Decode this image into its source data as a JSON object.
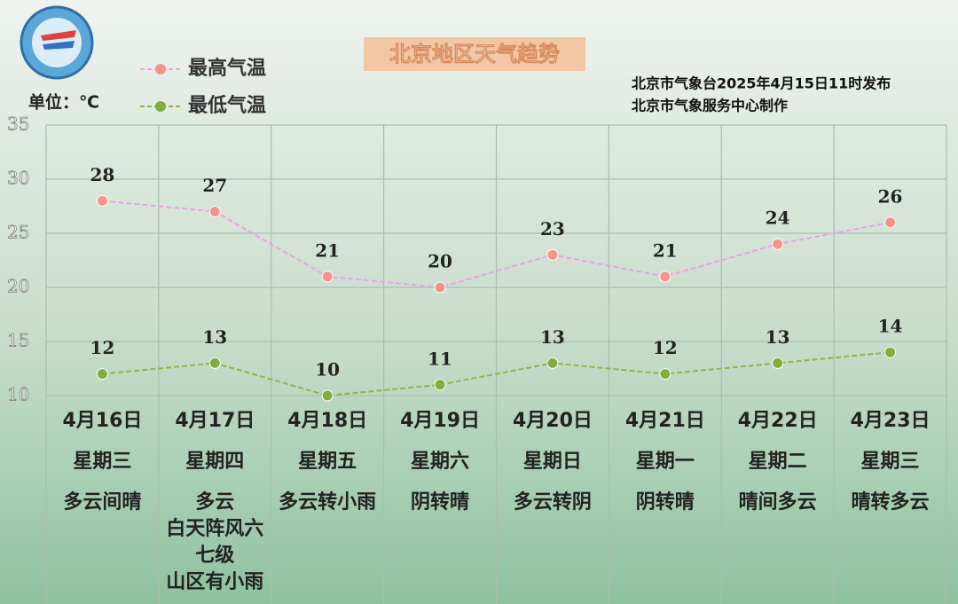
{
  "chart_data": {
    "type": "line",
    "title": "北京地区天气趋势",
    "unit_label": "单位：℃",
    "notes": [
      "北京市气象台2025年4月15日11时发布",
      "北京市气象服务中心制作"
    ],
    "categories": [
      "4月16日",
      "4月17日",
      "4月18日",
      "4月19日",
      "4月20日",
      "4月21日",
      "4月22日",
      "4月23日"
    ],
    "weekdays": [
      "星期三",
      "星期四",
      "星期五",
      "星期六",
      "星期日",
      "星期一",
      "星期二",
      "星期三"
    ],
    "weather": [
      [
        "多云间晴"
      ],
      [
        "多云",
        "白天阵风六",
        "七级",
        "山区有小雨"
      ],
      [
        "多云转小雨"
      ],
      [
        "阴转晴"
      ],
      [
        "多云转阴"
      ],
      [
        "阴转晴"
      ],
      [
        "晴间多云"
      ],
      [
        "晴转多云"
      ]
    ],
    "series": [
      {
        "name": "最高气温",
        "color": "#f4948a",
        "line_color": "#eea0e6",
        "values": [
          28,
          27,
          21,
          20,
          23,
          21,
          24,
          26
        ]
      },
      {
        "name": "最低气温",
        "color": "#7fae3c",
        "line_color": "#8db84a",
        "values": [
          12,
          13,
          10,
          11,
          13,
          12,
          13,
          14
        ]
      }
    ],
    "ylim": [
      10,
      35
    ],
    "yticks": [
      10,
      15,
      20,
      25,
      30,
      35
    ],
    "grid": true
  }
}
